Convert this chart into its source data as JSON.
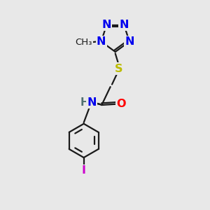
{
  "bg_color": "#e8e8e8",
  "bond_color": "#1a1a1a",
  "atom_colors": {
    "N": "#0000ee",
    "O": "#ff0000",
    "S": "#bbbb00",
    "I": "#cc00cc",
    "H": "#507070",
    "C": "#1a1a1a"
  },
  "lw": 1.6,
  "fs": 11.5
}
